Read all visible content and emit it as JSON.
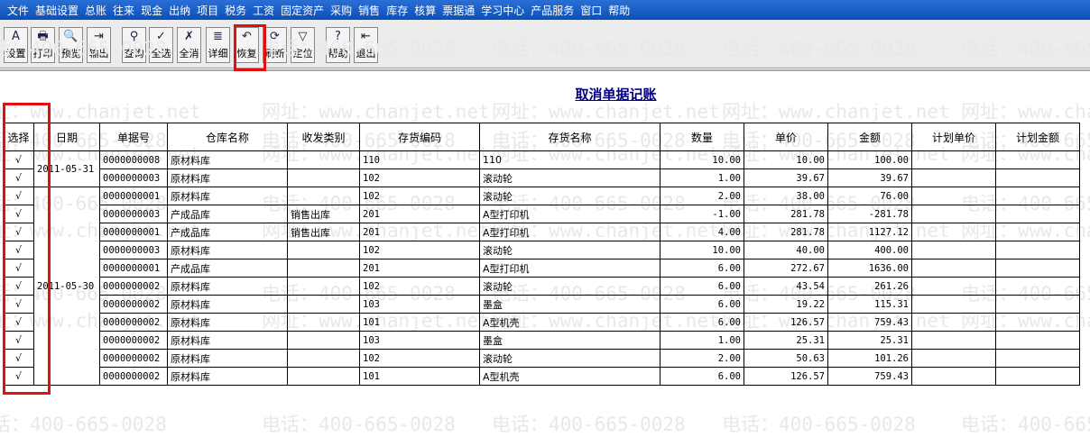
{
  "menu": [
    "文件",
    "基础设置",
    "总账",
    "往来",
    "现金",
    "出纳",
    "项目",
    "税务",
    "工资",
    "固定资产",
    "采购",
    "销售",
    "库存",
    "核算",
    "票据通",
    "学习中心",
    "产品服务",
    "窗口",
    "帮助"
  ],
  "toolbar": [
    {
      "label": "设置",
      "icon": "settings-icon",
      "glyph": "A"
    },
    {
      "label": "打印",
      "icon": "printer-icon",
      "glyph": "🖶"
    },
    {
      "label": "预览",
      "icon": "preview-icon",
      "glyph": "🔍"
    },
    {
      "label": "输出",
      "icon": "export-icon",
      "glyph": "⇥"
    },
    {
      "label": "查询",
      "icon": "binoculars-icon",
      "glyph": "⚲"
    },
    {
      "label": "全选",
      "icon": "select-all-icon",
      "glyph": "✓"
    },
    {
      "label": "全消",
      "icon": "deselect-all-icon",
      "glyph": "✗"
    },
    {
      "label": "详细",
      "icon": "detail-icon",
      "glyph": "≣"
    },
    {
      "label": "恢复",
      "icon": "undo-icon",
      "glyph": "↶"
    },
    {
      "label": "刷新",
      "icon": "refresh-icon",
      "glyph": "⟳"
    },
    {
      "label": "定位",
      "icon": "filter-icon",
      "glyph": "▽"
    },
    {
      "label": "帮助",
      "icon": "help-icon",
      "glyph": "?"
    },
    {
      "label": "退出",
      "icon": "exit-icon",
      "glyph": "⇤"
    }
  ],
  "title": "取消单据记账",
  "watermark": {
    "phone": "电话：400-665-0028",
    "site": "网址：www.chanjet.net"
  },
  "table": {
    "headers": [
      "选择",
      "日期",
      "单据号",
      "仓库名称",
      "收发类别",
      "存货编码",
      "存货名称",
      "数量",
      "单价",
      "金额",
      "计划单价",
      "计划金额"
    ],
    "date_groups": [
      {
        "date": "2011-05-31",
        "rows": 2
      },
      {
        "date": "2011-05-30",
        "rows": 11
      }
    ],
    "rows": [
      {
        "sel": "√",
        "no": "0000000008",
        "wh": "原材料库",
        "type": "",
        "code": "110",
        "name": "110",
        "qty": "10.00",
        "price": "10.00",
        "amt": "100.00"
      },
      {
        "sel": "√",
        "no": "0000000003",
        "wh": "原材料库",
        "type": "",
        "code": "102",
        "name": "滚动轮",
        "qty": "1.00",
        "price": "39.67",
        "amt": "39.67"
      },
      {
        "sel": "√",
        "no": "0000000001",
        "wh": "原材料库",
        "type": "",
        "code": "102",
        "name": "滚动轮",
        "qty": "2.00",
        "price": "38.00",
        "amt": "76.00"
      },
      {
        "sel": "√",
        "no": "0000000003",
        "wh": "产成品库",
        "type": "销售出库",
        "code": "201",
        "name": "A型打印机",
        "qty": "-1.00",
        "price": "281.78",
        "amt": "-281.78"
      },
      {
        "sel": "√",
        "no": "0000000001",
        "wh": "产成品库",
        "type": "销售出库",
        "code": "201",
        "name": "A型打印机",
        "qty": "4.00",
        "price": "281.78",
        "amt": "1127.12"
      },
      {
        "sel": "√",
        "no": "0000000003",
        "wh": "原材料库",
        "type": "",
        "code": "102",
        "name": "滚动轮",
        "qty": "10.00",
        "price": "40.00",
        "amt": "400.00"
      },
      {
        "sel": "√",
        "no": "0000000001",
        "wh": "产成品库",
        "type": "",
        "code": "201",
        "name": "A型打印机",
        "qty": "6.00",
        "price": "272.67",
        "amt": "1636.00"
      },
      {
        "sel": "√",
        "no": "0000000002",
        "wh": "原材料库",
        "type": "",
        "code": "102",
        "name": "滚动轮",
        "qty": "6.00",
        "price": "43.54",
        "amt": "261.26"
      },
      {
        "sel": "√",
        "no": "0000000002",
        "wh": "原材料库",
        "type": "",
        "code": "103",
        "name": "墨盒",
        "qty": "6.00",
        "price": "19.22",
        "amt": "115.31"
      },
      {
        "sel": "√",
        "no": "0000000002",
        "wh": "原材料库",
        "type": "",
        "code": "101",
        "name": "A型机壳",
        "qty": "6.00",
        "price": "126.57",
        "amt": "759.43"
      },
      {
        "sel": "√",
        "no": "0000000002",
        "wh": "原材料库",
        "type": "",
        "code": "103",
        "name": "墨盒",
        "qty": "1.00",
        "price": "25.31",
        "amt": "25.31"
      },
      {
        "sel": "√",
        "no": "0000000002",
        "wh": "原材料库",
        "type": "",
        "code": "102",
        "name": "滚动轮",
        "qty": "2.00",
        "price": "50.63",
        "amt": "101.26"
      },
      {
        "sel": "√",
        "no": "0000000002",
        "wh": "原材料库",
        "type": "",
        "code": "101",
        "name": "A型机壳",
        "qty": "6.00",
        "price": "126.57",
        "amt": "759.43"
      }
    ]
  },
  "colors": {
    "menubar": "#0b4fb8",
    "title": "#000080",
    "highlight": "#e01010"
  }
}
